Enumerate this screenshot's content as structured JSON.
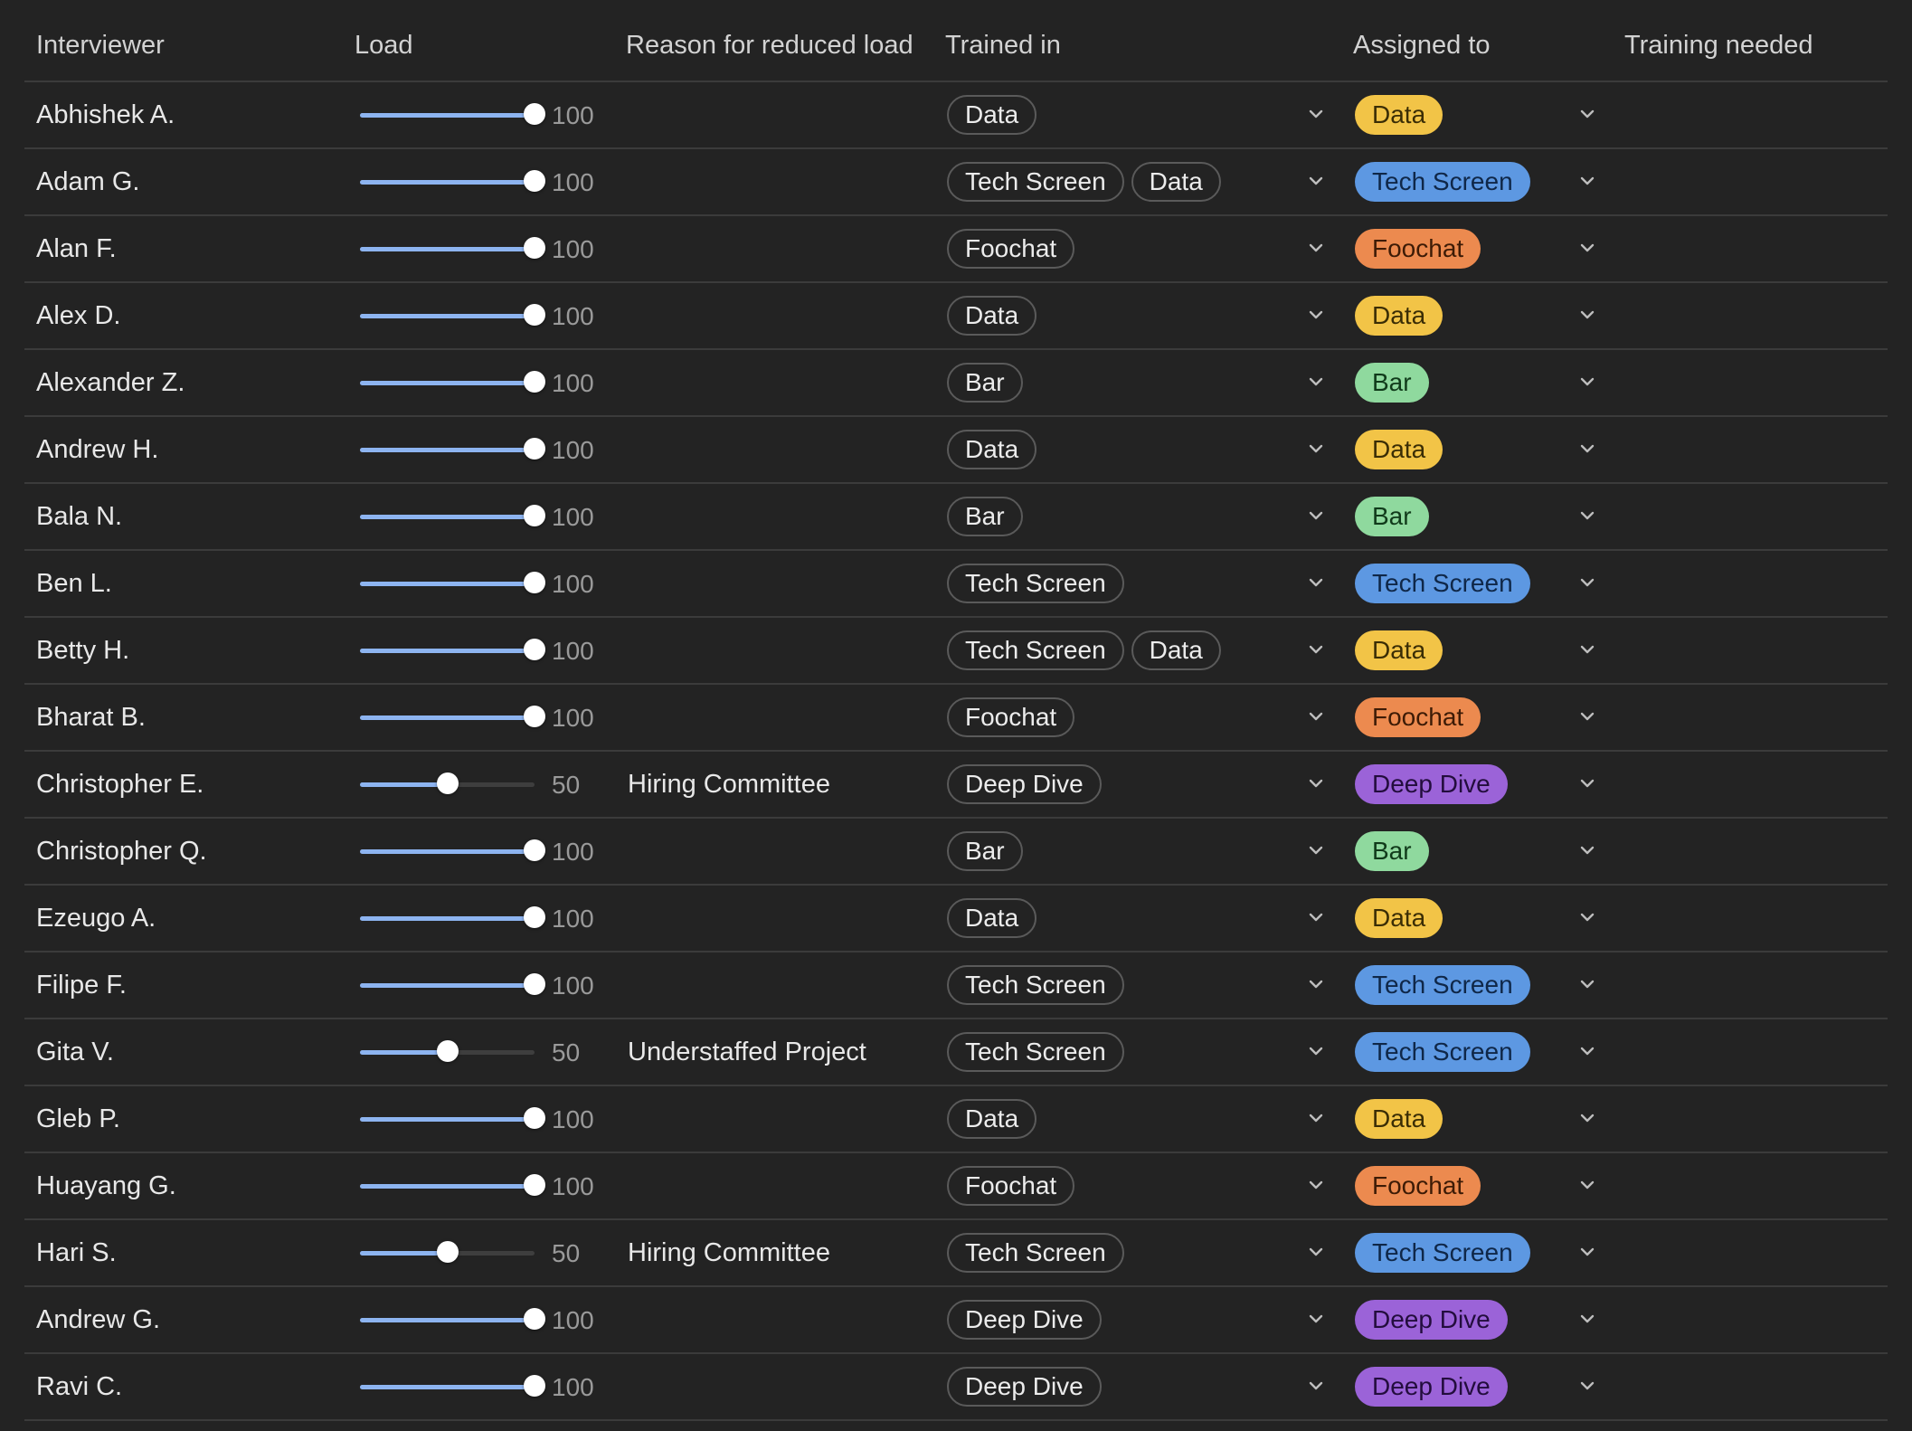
{
  "columns": {
    "interviewer": "Interviewer",
    "load": "Load",
    "reason": "Reason for reduced load",
    "trained_in": "Trained in",
    "assigned_to": "Assigned to",
    "training_needed": "Training needed"
  },
  "colors": {
    "Data": "#f2c447",
    "Tech Screen": "#5d98e2",
    "Foochat": "#ec8a4f",
    "Bar": "#8fd99e",
    "Deep Dive": "#9b63d8",
    "slider_fill": "#8db4f0"
  },
  "icons": {
    "dropdown": "chevron-down-icon"
  },
  "rows": [
    {
      "name": "Abhishek A.",
      "load": 100,
      "reason": "",
      "trained": [
        "Data"
      ],
      "assigned": "Data"
    },
    {
      "name": "Adam G.",
      "load": 100,
      "reason": "",
      "trained": [
        "Tech Screen",
        "Data"
      ],
      "assigned": "Tech Screen"
    },
    {
      "name": "Alan F.",
      "load": 100,
      "reason": "",
      "trained": [
        "Foochat"
      ],
      "assigned": "Foochat"
    },
    {
      "name": "Alex D.",
      "load": 100,
      "reason": "",
      "trained": [
        "Data"
      ],
      "assigned": "Data"
    },
    {
      "name": "Alexander Z.",
      "load": 100,
      "reason": "",
      "trained": [
        "Bar"
      ],
      "assigned": "Bar"
    },
    {
      "name": "Andrew H.",
      "load": 100,
      "reason": "",
      "trained": [
        "Data"
      ],
      "assigned": "Data"
    },
    {
      "name": "Bala N.",
      "load": 100,
      "reason": "",
      "trained": [
        "Bar"
      ],
      "assigned": "Bar"
    },
    {
      "name": "Ben L.",
      "load": 100,
      "reason": "",
      "trained": [
        "Tech Screen"
      ],
      "assigned": "Tech Screen"
    },
    {
      "name": "Betty H.",
      "load": 100,
      "reason": "",
      "trained": [
        "Tech Screen",
        "Data"
      ],
      "assigned": "Data"
    },
    {
      "name": "Bharat B.",
      "load": 100,
      "reason": "",
      "trained": [
        "Foochat"
      ],
      "assigned": "Foochat"
    },
    {
      "name": "Christopher E.",
      "load": 50,
      "reason": "Hiring Committee",
      "trained": [
        "Deep Dive"
      ],
      "assigned": "Deep Dive"
    },
    {
      "name": "Christopher Q.",
      "load": 100,
      "reason": "",
      "trained": [
        "Bar"
      ],
      "assigned": "Bar"
    },
    {
      "name": "Ezeugo A.",
      "load": 100,
      "reason": "",
      "trained": [
        "Data"
      ],
      "assigned": "Data"
    },
    {
      "name": "Filipe F.",
      "load": 100,
      "reason": "",
      "trained": [
        "Tech Screen"
      ],
      "assigned": "Tech Screen"
    },
    {
      "name": "Gita V.",
      "load": 50,
      "reason": "Understaffed Project",
      "trained": [
        "Tech Screen"
      ],
      "assigned": "Tech Screen"
    },
    {
      "name": "Gleb P.",
      "load": 100,
      "reason": "",
      "trained": [
        "Data"
      ],
      "assigned": "Data"
    },
    {
      "name": "Huayang G.",
      "load": 100,
      "reason": "",
      "trained": [
        "Foochat"
      ],
      "assigned": "Foochat"
    },
    {
      "name": "Hari S.",
      "load": 50,
      "reason": "Hiring Committee",
      "trained": [
        "Tech Screen"
      ],
      "assigned": "Tech Screen"
    },
    {
      "name": "Andrew G.",
      "load": 100,
      "reason": "",
      "trained": [
        "Deep Dive"
      ],
      "assigned": "Deep Dive"
    },
    {
      "name": "Ravi C.",
      "load": 100,
      "reason": "",
      "trained": [
        "Deep Dive"
      ],
      "assigned": "Deep Dive"
    }
  ]
}
